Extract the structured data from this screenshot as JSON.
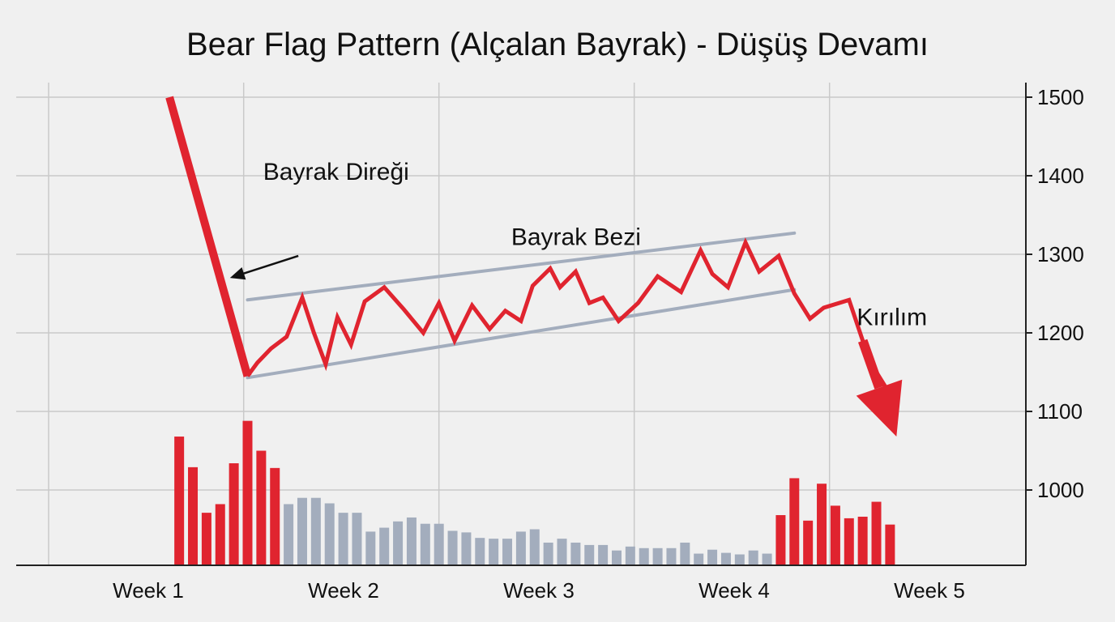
{
  "chart_data": {
    "type": "line",
    "title": "Bear Flag Pattern (Alçalan Bayrak) - Düşüş Devamı",
    "xlabel": "",
    "ylabel": "",
    "ylim": [
      900,
      1500
    ],
    "y_axis_position": "right",
    "y_ticks": [
      1500,
      1400,
      1300,
      1200,
      1100,
      1000
    ],
    "x_tick_labels": [
      "Week 1",
      "Week 2",
      "Week 3",
      "Week 4",
      "Week 5"
    ],
    "x_tick_positions": [
      1,
      2,
      3,
      4,
      5
    ],
    "grid": true,
    "colors": {
      "price": "#e0242f",
      "channel": "#a3adbd",
      "volume_high": "#e0242f",
      "volume_low": "#a3adbd",
      "grid": "#c9c9c9",
      "axis": "#222222"
    },
    "pole": {
      "x": [
        1.1,
        1.5
      ],
      "y": [
        1500,
        1145
      ]
    },
    "price_series": {
      "x": [
        1.5,
        1.55,
        1.62,
        1.7,
        1.78,
        1.84,
        1.9,
        1.96,
        2.03,
        2.1,
        2.2,
        2.3,
        2.4,
        2.48,
        2.56,
        2.65,
        2.74,
        2.82,
        2.9,
        2.96,
        3.05,
        3.1,
        3.18,
        3.25,
        3.32,
        3.4,
        3.5,
        3.6,
        3.72,
        3.82,
        3.88,
        3.96,
        4.05,
        4.12,
        4.22,
        4.3,
        4.38,
        4.45,
        4.58,
        4.65,
        4.72,
        4.82
      ],
      "y": [
        1145,
        1162,
        1180,
        1195,
        1245,
        1200,
        1160,
        1220,
        1185,
        1240,
        1258,
        1230,
        1200,
        1238,
        1190,
        1235,
        1205,
        1228,
        1215,
        1260,
        1282,
        1258,
        1278,
        1238,
        1245,
        1215,
        1238,
        1272,
        1252,
        1305,
        1275,
        1258,
        1315,
        1278,
        1298,
        1250,
        1218,
        1232,
        1242,
        1190,
        1150,
        1110
      ]
    },
    "flag_channel": {
      "upper": {
        "x": [
          1.5,
          4.3
        ],
        "y": [
          1242,
          1327
        ]
      },
      "lower": {
        "x": [
          1.5,
          4.3
        ],
        "y": [
          1143,
          1255
        ]
      }
    },
    "breakout_arrow": {
      "x": [
        4.65,
        4.82
      ],
      "y": [
        1190,
        1070
      ]
    },
    "volume": {
      "x": [
        1.15,
        1.22,
        1.29,
        1.36,
        1.43,
        1.5,
        1.57,
        1.64,
        1.71,
        1.78,
        1.85,
        1.92,
        1.99,
        2.06,
        2.13,
        2.2,
        2.27,
        2.34,
        2.41,
        2.48,
        2.55,
        2.62,
        2.69,
        2.76,
        2.83,
        2.9,
        2.97,
        3.04,
        3.11,
        3.18,
        3.25,
        3.32,
        3.39,
        3.46,
        3.53,
        3.6,
        3.67,
        3.74,
        3.81,
        3.88,
        3.95,
        4.02,
        4.09,
        4.16,
        4.23,
        4.3,
        4.37,
        4.44,
        4.51,
        4.58,
        4.65,
        4.72,
        4.79
      ],
      "values": [
        1068,
        1029,
        971,
        982,
        1034,
        1088,
        1050,
        1028,
        982,
        990,
        990,
        983,
        971,
        971,
        947,
        952,
        960,
        965,
        957,
        957,
        948,
        946,
        939,
        938,
        938,
        947,
        950,
        933,
        938,
        933,
        930,
        930,
        923,
        928,
        926,
        926,
        926,
        933,
        919,
        924,
        920,
        918,
        923,
        919,
        968,
        1015,
        961,
        1008,
        980,
        964,
        966,
        985,
        956
      ],
      "high_flags": [
        true,
        true,
        true,
        true,
        true,
        true,
        true,
        true,
        false,
        false,
        false,
        false,
        false,
        false,
        false,
        false,
        false,
        false,
        false,
        false,
        false,
        false,
        false,
        false,
        false,
        false,
        false,
        false,
        false,
        false,
        false,
        false,
        false,
        false,
        false,
        false,
        false,
        false,
        false,
        false,
        false,
        false,
        false,
        false,
        true,
        true,
        true,
        true,
        true,
        true,
        true,
        true,
        true
      ]
    },
    "annotations": [
      {
        "key": "pole_label",
        "text": "Bayrak Direği",
        "x": 1.58,
        "y": 1395
      },
      {
        "key": "flag_label",
        "text": "Bayrak Bezi",
        "x": 2.85,
        "y": 1312
      },
      {
        "key": "breakout_label",
        "text": "Kırılım",
        "x": 4.62,
        "y": 1210
      }
    ]
  }
}
